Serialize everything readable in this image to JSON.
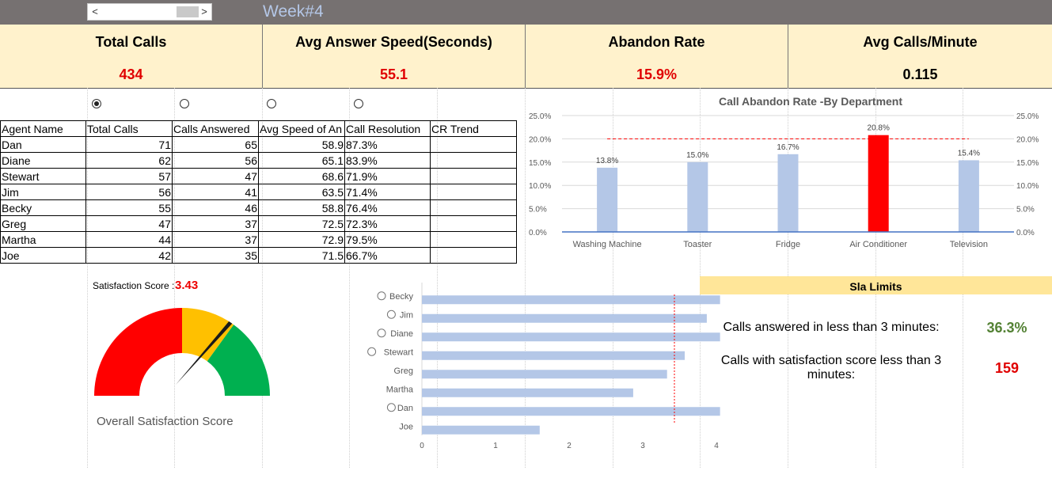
{
  "header": {
    "week_title": "Week#4"
  },
  "scrollbar": {
    "left_arrow": "<",
    "right_arrow": ">"
  },
  "kpis": [
    {
      "label": "Total Calls",
      "value": "434",
      "color": "#e00000"
    },
    {
      "label": "Avg Answer Speed(Seconds)",
      "value": "55.1",
      "color": "#e00000"
    },
    {
      "label": "Abandon Rate",
      "value": "15.9%",
      "color": "#e00000"
    },
    {
      "label": "Avg Calls/Minute",
      "value": "0.115",
      "color": "#000000"
    }
  ],
  "table": {
    "headers": [
      "Agent Name",
      "Total Calls",
      "Calls Answered",
      "Avg Speed of An",
      "Call Resolution",
      "CR Trend"
    ],
    "rows": [
      [
        "Dan",
        "71",
        "65",
        "58.9",
        "87.3%",
        ""
      ],
      [
        "Diane",
        "62",
        "56",
        "65.1",
        "83.9%",
        ""
      ],
      [
        "Stewart",
        "57",
        "47",
        "68.6",
        "71.9%",
        ""
      ],
      [
        "Jim",
        "56",
        "41",
        "63.5",
        "71.4%",
        ""
      ],
      [
        "Becky",
        "55",
        "46",
        "58.8",
        "76.4%",
        ""
      ],
      [
        "Greg",
        "47",
        "37",
        "72.5",
        "72.3%",
        ""
      ],
      [
        "Martha",
        "44",
        "37",
        "72.9",
        "79.5%",
        ""
      ],
      [
        "Joe",
        "42",
        "35",
        "71.5",
        "66.7%",
        ""
      ]
    ]
  },
  "satisfaction": {
    "label": "Satisfaction Score :",
    "value": "3.43",
    "gauge_label": "Overall Satisfaction Score"
  },
  "sla": {
    "title": "Sla Limits",
    "items": [
      {
        "label": "Calls answered in less than 3 minutes:",
        "value": "36.3%",
        "color": "#548235"
      },
      {
        "label": "Calls with satisfaction score less than 3 minutes:",
        "value": "159",
        "color": "#e00000"
      }
    ]
  },
  "chart_data": [
    {
      "type": "bar",
      "title": "Call Abandon Rate -By Department",
      "categories": [
        "Washing Machine",
        "Toaster",
        "Fridge",
        "Air Conditioner",
        "Television"
      ],
      "values": [
        13.8,
        15.0,
        16.7,
        20.8,
        15.4
      ],
      "data_labels": [
        "13.8%",
        "15.0%",
        "16.7%",
        "20.8%",
        "15.4%"
      ],
      "highlight_index": 3,
      "bar_color": "#b4c7e7",
      "highlight_color": "#ff0000",
      "threshold": 20.0,
      "ylim": [
        0,
        25
      ],
      "yticks": [
        "0.0%",
        "5.0%",
        "10.0%",
        "15.0%",
        "20.0%",
        "25.0%"
      ],
      "secondary_axis": true,
      "grid": true
    },
    {
      "type": "bar",
      "orientation": "horizontal",
      "categories": [
        "Becky",
        "Jim",
        "Diane",
        "Stewart",
        "Greg",
        "Martha",
        "Dan",
        "Joe"
      ],
      "icons": [
        "smiley-icon",
        "smiley-icon",
        "smiley-icon",
        "smiley-icon",
        "",
        "",
        "smiley-icon",
        ""
      ],
      "values": [
        4.05,
        3.87,
        4.05,
        3.57,
        3.33,
        2.87,
        4.05,
        1.6
      ],
      "threshold": 3.43,
      "xlim": [
        0,
        4
      ],
      "xticks": [
        "0",
        "1",
        "2",
        "3",
        "4"
      ],
      "bar_color": "#b4c7e7"
    },
    {
      "type": "gauge",
      "value": 3.43,
      "range": [
        0,
        5
      ],
      "bands": [
        {
          "from": 0,
          "to": 2.5,
          "color": "#ff0000"
        },
        {
          "from": 2.5,
          "to": 3.5,
          "color": "#ffc000"
        },
        {
          "from": 3.5,
          "to": 5,
          "color": "#00b050"
        }
      ]
    }
  ]
}
